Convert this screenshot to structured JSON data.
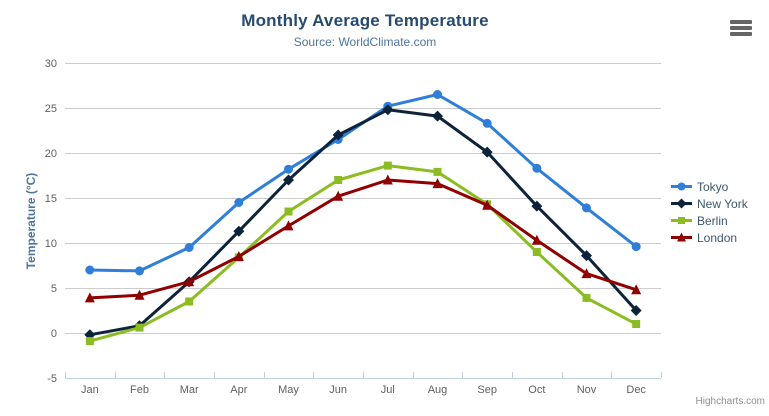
{
  "chart_data": {
    "type": "line",
    "title": "Monthly Average Temperature",
    "subtitle": "Source: WorldClimate.com",
    "xlabel": "",
    "ylabel": "Temperature (°C)",
    "categories": [
      "Jan",
      "Feb",
      "Mar",
      "Apr",
      "May",
      "Jun",
      "Jul",
      "Aug",
      "Sep",
      "Oct",
      "Nov",
      "Dec"
    ],
    "ylim": [
      -5,
      30
    ],
    "yticks": [
      30,
      25,
      20,
      15,
      10,
      5,
      0,
      -5
    ],
    "tick_interval": 5,
    "grid": "horizontal-only",
    "legend_position": "right-middle",
    "series": [
      {
        "name": "Tokyo",
        "color": "#2f7ed8",
        "marker": "circle",
        "values": [
          7.0,
          6.9,
          9.5,
          14.5,
          18.2,
          21.5,
          25.2,
          26.5,
          23.3,
          18.3,
          13.9,
          9.6
        ]
      },
      {
        "name": "New York",
        "color": "#0d233a",
        "marker": "diamond",
        "values": [
          -0.2,
          0.8,
          5.7,
          11.3,
          17.0,
          22.0,
          24.8,
          24.1,
          20.1,
          14.1,
          8.6,
          2.5
        ]
      },
      {
        "name": "Berlin",
        "color": "#8bbc21",
        "marker": "square",
        "values": [
          -0.9,
          0.6,
          3.5,
          8.4,
          13.5,
          17.0,
          18.6,
          17.9,
          14.3,
          9.0,
          3.9,
          1.0
        ]
      },
      {
        "name": "London",
        "color": "#910000",
        "marker": "triangle",
        "values": [
          3.9,
          4.2,
          5.7,
          8.5,
          11.9,
          15.2,
          17.0,
          16.6,
          14.2,
          10.3,
          6.6,
          4.8
        ]
      }
    ],
    "colors": {
      "grid": "#cccccc",
      "axis_line": "#c0d0e0",
      "axis_label": "#606060",
      "title": "#274b6d",
      "subtitle": "#4d759e",
      "legend_text": "#3e576f"
    }
  },
  "credits": {
    "text": "Highcharts.com"
  }
}
